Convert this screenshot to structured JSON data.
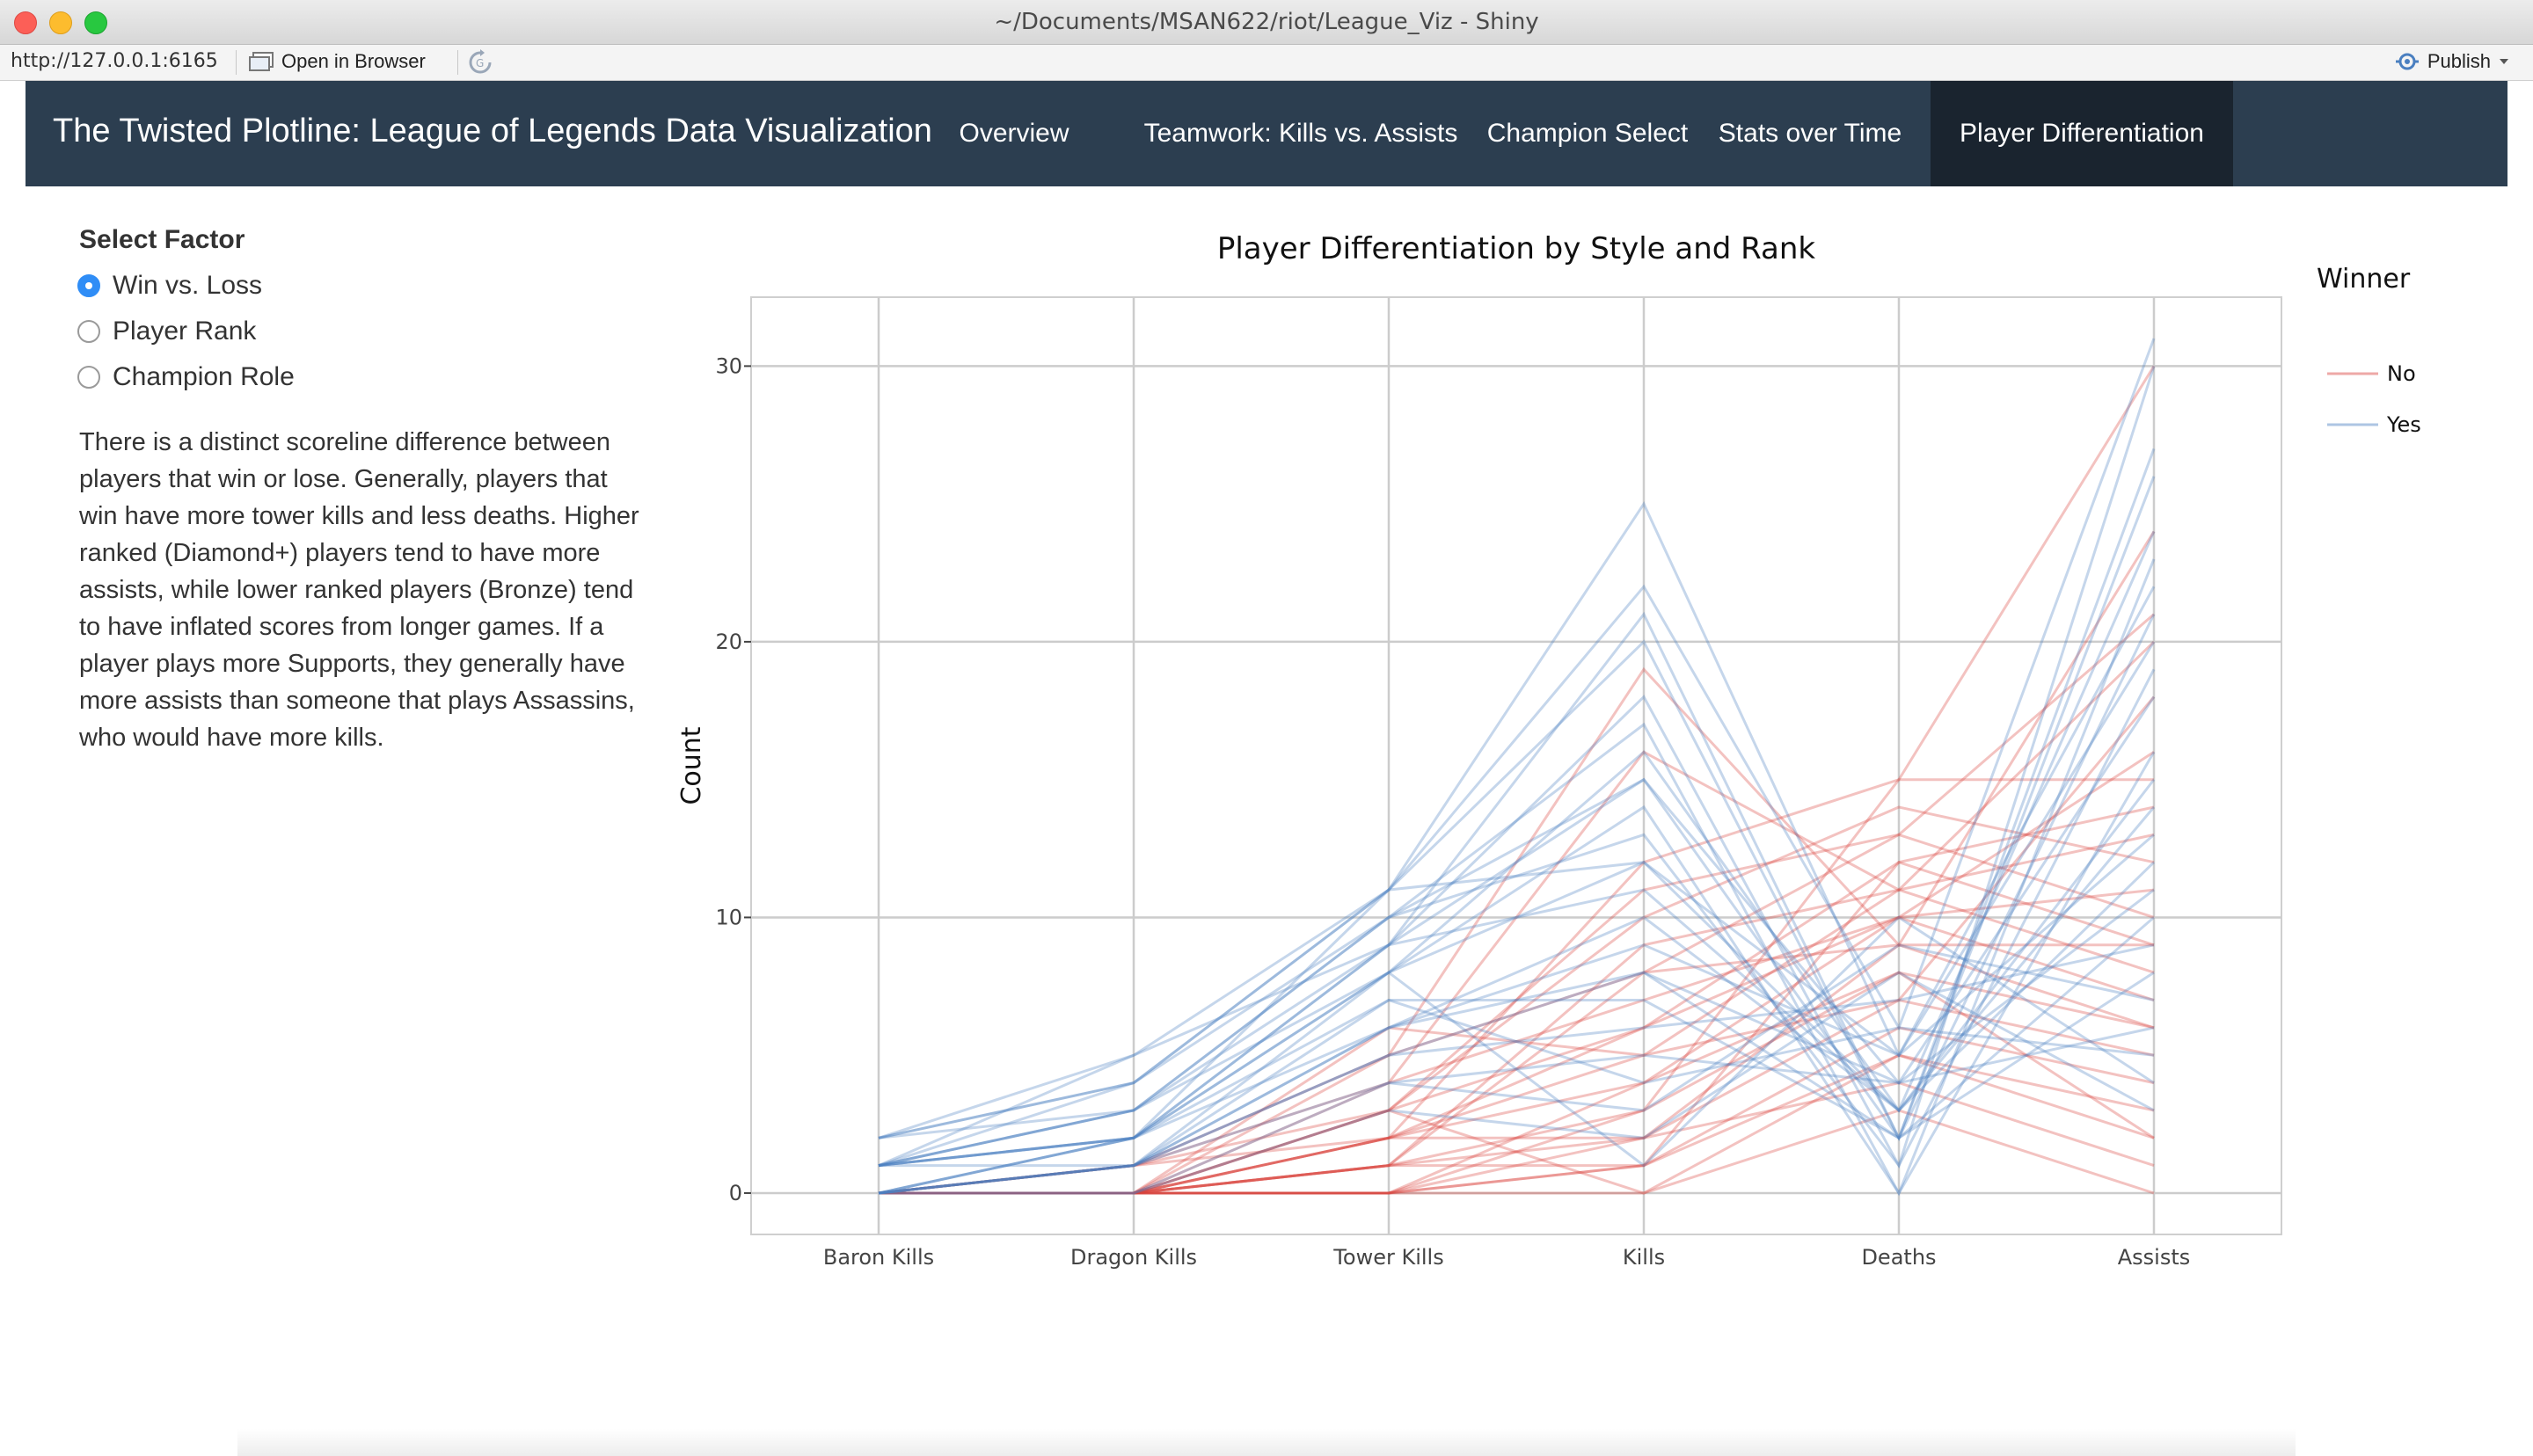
{
  "window": {
    "title": "~/Documents/MSAN622/riot/League_Viz - Shiny"
  },
  "toolbar": {
    "url": "http://127.0.0.1:6165",
    "open_in_browser": "Open in Browser",
    "publish": "Publish"
  },
  "navbar": {
    "brand": "The Twisted Plotline: League of Legends Data Visualization",
    "tabs": [
      {
        "label": "Overview"
      },
      {
        "label": "Teamwork: Kills vs. Assists"
      },
      {
        "label": "Champion Select"
      },
      {
        "label": "Stats over Time"
      },
      {
        "label": "Player Differentiation",
        "active": true
      }
    ]
  },
  "sidebar": {
    "label": "Select Factor",
    "options": [
      {
        "label": "Win vs. Loss",
        "checked": true
      },
      {
        "label": "Player Rank",
        "checked": false
      },
      {
        "label": "Champion Role",
        "checked": false
      }
    ],
    "description": "There is a distinct scoreline difference between players that win or lose. Generally, players that win have more tower kills and less deaths. Higher ranked (Diamond+) players tend to have more assists, while lower ranked players (Bronze) tend to have inflated scores from longer games. If a player plays more Supports, they generally have more assists than someone that plays Assassins, who would have more kills."
  },
  "chart_data": {
    "type": "line",
    "subtype": "parallel-coordinates",
    "title": "Player Differentiation by Style and Rank",
    "xlabel": "",
    "ylabel": "Count",
    "x": [
      "Baron Kills",
      "Dragon Kills",
      "Tower Kills",
      "Kills",
      "Deaths",
      "Assists"
    ],
    "ylim": [
      -1.5,
      32.5
    ],
    "yticks": [
      0,
      10,
      20,
      30
    ],
    "grid": true,
    "legend": {
      "title": "Winner",
      "position": "right"
    },
    "series": [
      {
        "name": "No",
        "color": "#d9413c",
        "lines": [
          [
            0,
            0,
            0,
            0,
            5,
            3
          ],
          [
            0,
            0,
            0,
            1,
            6,
            4
          ],
          [
            0,
            0,
            1,
            2,
            7,
            5
          ],
          [
            0,
            0,
            1,
            3,
            8,
            2
          ],
          [
            0,
            0,
            2,
            2,
            9,
            6
          ],
          [
            0,
            0,
            0,
            4,
            10,
            7
          ],
          [
            0,
            0,
            2,
            5,
            11,
            8
          ],
          [
            0,
            1,
            3,
            6,
            12,
            9
          ],
          [
            0,
            0,
            1,
            8,
            13,
            10
          ],
          [
            0,
            0,
            3,
            10,
            14,
            12
          ],
          [
            0,
            0,
            2,
            12,
            15,
            15
          ],
          [
            0,
            1,
            4,
            16,
            11,
            20
          ],
          [
            0,
            0,
            5,
            19,
            9,
            24
          ],
          [
            0,
            0,
            0,
            3,
            15,
            30
          ],
          [
            0,
            0,
            1,
            1,
            12,
            14
          ],
          [
            0,
            0,
            4,
            7,
            10,
            11
          ],
          [
            0,
            1,
            2,
            4,
            8,
            6
          ],
          [
            0,
            0,
            0,
            2,
            4,
            1
          ],
          [
            0,
            0,
            3,
            0,
            3,
            0
          ],
          [
            0,
            0,
            6,
            5,
            7,
            18
          ],
          [
            0,
            0,
            1,
            9,
            11,
            13
          ],
          [
            0,
            0,
            2,
            6,
            10,
            16
          ],
          [
            0,
            0,
            0,
            1,
            5,
            2
          ],
          [
            0,
            0,
            3,
            11,
            13,
            21
          ],
          [
            0,
            1,
            5,
            8,
            9,
            9
          ]
        ]
      },
      {
        "name": "Yes",
        "color": "#4a7fc0",
        "lines": [
          [
            0,
            1,
            5,
            8,
            2,
            10
          ],
          [
            1,
            2,
            8,
            12,
            3,
            14
          ],
          [
            1,
            3,
            10,
            15,
            4,
            18
          ],
          [
            2,
            4,
            11,
            25,
            5,
            22
          ],
          [
            1,
            2,
            9,
            18,
            1,
            30
          ],
          [
            0,
            1,
            6,
            10,
            3,
            12
          ],
          [
            0,
            2,
            7,
            7,
            2,
            8
          ],
          [
            2,
            5,
            11,
            22,
            6,
            31
          ],
          [
            1,
            3,
            8,
            14,
            0,
            16
          ],
          [
            0,
            0,
            4,
            5,
            4,
            6
          ],
          [
            1,
            1,
            6,
            9,
            5,
            20
          ],
          [
            0,
            2,
            9,
            11,
            3,
            15
          ],
          [
            1,
            4,
            11,
            20,
            2,
            26
          ],
          [
            0,
            1,
            5,
            6,
            7,
            9
          ],
          [
            2,
            3,
            10,
            13,
            1,
            19
          ],
          [
            0,
            1,
            7,
            4,
            6,
            5
          ],
          [
            1,
            2,
            8,
            16,
            3,
            24
          ],
          [
            0,
            0,
            3,
            2,
            8,
            3
          ],
          [
            1,
            3,
            9,
            21,
            2,
            27
          ],
          [
            0,
            2,
            6,
            8,
            4,
            11
          ],
          [
            2,
            4,
            10,
            17,
            0,
            23
          ],
          [
            0,
            1,
            4,
            3,
            9,
            7
          ],
          [
            1,
            2,
            11,
            12,
            5,
            13
          ],
          [
            0,
            1,
            8,
            1,
            10,
            4
          ],
          [
            1,
            5,
            9,
            15,
            2,
            21
          ]
        ]
      }
    ]
  }
}
